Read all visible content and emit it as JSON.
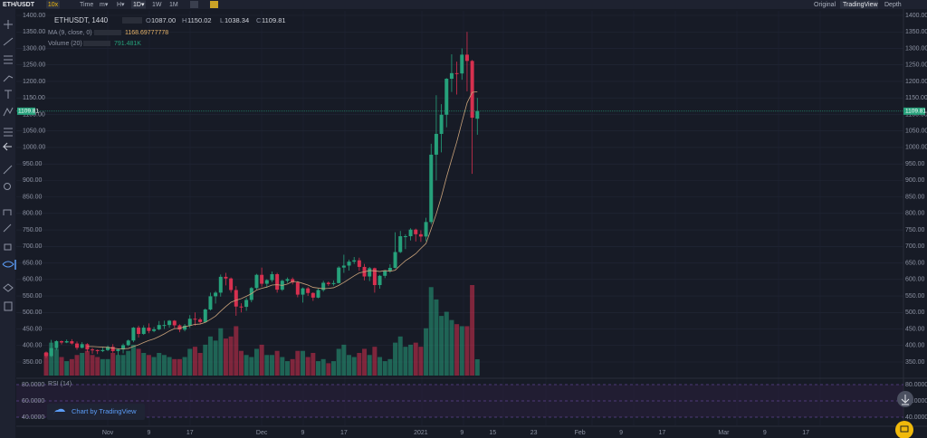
{
  "toolbar": {
    "pair": "ETH/USDT",
    "leverage": "10x",
    "intervals": [
      "Time",
      "m▾",
      "H▾",
      "1D▾",
      "1W",
      "1M"
    ],
    "views": [
      "Original",
      "TradingView",
      "Depth"
    ]
  },
  "legend": {
    "symbol": "ETHUSDT, 1440",
    "open_label": "O",
    "open": "1087.00",
    "high_label": "H",
    "high": "1150.02",
    "low_label": "L",
    "low": "1038.34",
    "close_label": "C",
    "close": "1109.81",
    "ma_name": "MA (9, close, 0)",
    "ma_value": "1168.69777778",
    "volume_name": "Volume (20)",
    "volume_value": "791.481K"
  },
  "chart": {
    "type": "candlestick",
    "yticks": [
      {
        "value": 350,
        "label": "350.00"
      },
      {
        "value": 400,
        "label": "400.00"
      },
      {
        "value": 450,
        "label": "450.00"
      },
      {
        "value": 500,
        "label": "500.00"
      },
      {
        "value": 550,
        "label": "550.00"
      },
      {
        "value": 600,
        "label": "600.00"
      },
      {
        "value": 650,
        "label": "650.00"
      },
      {
        "value": 700,
        "label": "700.00"
      },
      {
        "value": 750,
        "label": "750.00"
      },
      {
        "value": 800,
        "label": "800.00"
      },
      {
        "value": 850,
        "label": "850.00"
      },
      {
        "value": 900,
        "label": "900.00"
      },
      {
        "value": 950,
        "label": "950.00"
      },
      {
        "value": 1000,
        "label": "1000.00"
      },
      {
        "value": 1050,
        "label": "1050.00"
      },
      {
        "value": 1100,
        "label": "1100.00"
      },
      {
        "value": 1150,
        "label": "1150.00"
      },
      {
        "value": 1200,
        "label": "1200.00"
      },
      {
        "value": 1250,
        "label": "1250.00"
      },
      {
        "value": 1300,
        "label": "1300.00"
      },
      {
        "value": 1350,
        "label": "1350.00"
      },
      {
        "value": 1400,
        "label": "1400.00"
      }
    ],
    "last_price": {
      "value": 1109.81,
      "label": "1109.81"
    },
    "date_labels": [
      "Nov",
      "9",
      "17",
      "Dec",
      "9",
      "17",
      "2021",
      "9",
      "15",
      "23",
      "Feb",
      "9",
      "17",
      "Mar",
      "9",
      "17"
    ],
    "candles": [
      [
        379,
        382,
        362,
        368
      ],
      [
        368,
        417,
        365,
        392
      ],
      [
        392,
        416,
        386,
        413
      ],
      [
        413,
        415,
        403,
        409
      ],
      [
        409,
        418,
        407,
        413
      ],
      [
        413,
        419,
        403,
        406
      ],
      [
        406,
        412,
        387,
        393
      ],
      [
        393,
        410,
        391,
        404
      ],
      [
        404,
        407,
        380,
        388
      ],
      [
        388,
        393,
        375,
        386
      ],
      [
        386,
        388,
        374,
        383
      ],
      [
        383,
        394,
        380,
        386
      ],
      [
        386,
        400,
        383,
        396
      ],
      [
        396,
        404,
        378,
        383
      ],
      [
        383,
        390,
        370,
        388
      ],
      [
        388,
        406,
        376,
        401
      ],
      [
        401,
        418,
        398,
        415
      ],
      [
        415,
        456,
        410,
        454
      ],
      [
        454,
        460,
        424,
        435
      ],
      [
        435,
        461,
        432,
        454
      ],
      [
        454,
        467,
        437,
        444
      ],
      [
        444,
        456,
        440,
        449
      ],
      [
        449,
        474,
        446,
        462
      ],
      [
        462,
        475,
        450,
        462
      ],
      [
        462,
        477,
        454,
        475
      ],
      [
        475,
        477,
        453,
        461
      ],
      [
        461,
        464,
        440,
        448
      ],
      [
        448,
        465,
        443,
        460
      ],
      [
        460,
        492,
        453,
        481
      ],
      [
        481,
        500,
        460,
        479
      ],
      [
        479,
        484,
        466,
        471
      ],
      [
        471,
        512,
        469,
        509
      ],
      [
        509,
        560,
        506,
        549
      ],
      [
        549,
        565,
        527,
        560
      ],
      [
        560,
        615,
        548,
        608
      ],
      [
        608,
        620,
        582,
        603
      ],
      [
        603,
        606,
        560,
        568
      ],
      [
        568,
        580,
        490,
        518
      ],
      [
        518,
        528,
        500,
        517
      ],
      [
        517,
        545,
        505,
        538
      ],
      [
        538,
        577,
        531,
        574
      ],
      [
        574,
        617,
        570,
        614
      ],
      [
        614,
        636,
        578,
        587
      ],
      [
        587,
        601,
        575,
        598
      ],
      [
        598,
        624,
        592,
        616
      ],
      [
        616,
        620,
        560,
        569
      ],
      [
        569,
        599,
        565,
        596
      ],
      [
        596,
        606,
        590,
        601
      ],
      [
        601,
        606,
        585,
        591
      ],
      [
        591,
        595,
        546,
        554
      ],
      [
        554,
        576,
        530,
        573
      ],
      [
        573,
        577,
        550,
        559
      ],
      [
        559,
        561,
        535,
        545
      ],
      [
        545,
        572,
        543,
        568
      ],
      [
        568,
        596,
        563,
        590
      ],
      [
        590,
        594,
        580,
        586
      ],
      [
        586,
        597,
        581,
        589
      ],
      [
        589,
        640,
        588,
        636
      ],
      [
        636,
        675,
        620,
        642
      ],
      [
        642,
        660,
        627,
        654
      ],
      [
        654,
        668,
        647,
        658
      ],
      [
        658,
        666,
        626,
        638
      ],
      [
        638,
        647,
        597,
        609
      ],
      [
        609,
        638,
        595,
        634
      ],
      [
        634,
        636,
        560,
        583
      ],
      [
        583,
        614,
        572,
        611
      ],
      [
        611,
        628,
        604,
        626
      ],
      [
        626,
        646,
        620,
        635
      ],
      [
        635,
        743,
        633,
        683
      ],
      [
        683,
        747,
        680,
        731
      ],
      [
        731,
        737,
        692,
        731
      ],
      [
        731,
        755,
        718,
        751
      ],
      [
        751,
        754,
        715,
        737
      ],
      [
        737,
        749,
        714,
        730
      ],
      [
        730,
        787,
        716,
        774
      ],
      [
        774,
        1011,
        768,
        978
      ],
      [
        978,
        1158,
        900,
        1041
      ],
      [
        1041,
        1131,
        985,
        1099
      ],
      [
        1099,
        1210,
        1061,
        1208
      ],
      [
        1208,
        1282,
        1168,
        1225
      ],
      [
        1225,
        1260,
        1160,
        1224
      ],
      [
        1224,
        1300,
        1205,
        1281
      ],
      [
        1281,
        1350,
        1170,
        1262
      ],
      [
        1262,
        1265,
        920,
        1090
      ],
      [
        1087,
        1150.02,
        1038.34,
        1109.81
      ]
    ],
    "volumes": [
      1100,
      1600,
      1300,
      900,
      700,
      800,
      1000,
      1100,
      1200,
      1000,
      900,
      800,
      800,
      1100,
      1000,
      1000,
      1200,
      1500,
      1300,
      1100,
      1000,
      900,
      1100,
      1000,
      900,
      800,
      800,
      900,
      1300,
      1400,
      1100,
      1500,
      1900,
      1700,
      2300,
      1800,
      1900,
      2400,
      1200,
      1000,
      900,
      1300,
      1500,
      1000,
      1000,
      1200,
      900,
      700,
      800,
      1200,
      1200,
      900,
      1100,
      700,
      800,
      600,
      700,
      1300,
      1500,
      1000,
      900,
      1100,
      1300,
      1000,
      1400,
      900,
      700,
      800,
      1600,
      1900,
      1400,
      1500,
      1600,
      1400,
      2300,
      4300,
      3700,
      2900,
      3100,
      2700,
      2500,
      2400,
      2400,
      4400,
      791.481
    ],
    "ma": [
      null,
      null,
      null,
      null,
      null,
      null,
      null,
      null,
      397,
      397,
      396,
      395,
      394,
      392,
      390,
      390,
      391,
      397,
      402,
      409,
      415,
      420,
      427,
      435,
      444,
      451,
      452,
      457,
      460,
      464,
      465,
      470,
      479,
      489,
      504,
      518,
      531,
      537,
      542,
      549,
      557,
      568,
      573,
      577,
      583,
      584,
      582,
      586,
      594,
      593,
      588,
      583,
      576,
      574,
      572,
      573,
      575,
      582,
      591,
      601,
      611,
      620,
      623,
      627,
      626,
      624,
      627,
      625,
      628,
      643,
      657,
      667,
      678,
      694,
      709,
      753,
      799,
      851,
      910,
      964,
      1017,
      1077,
      1135,
      1167,
      1168.69777778
    ],
    "ma_color": "#c9a27a",
    "up_color": "#26a17b",
    "down_color": "#d6304f"
  },
  "rsi": {
    "name": "RSI (14)",
    "yticks": [
      {
        "value": 80,
        "label": "80.0000"
      },
      {
        "value": 60,
        "label": "60.0000"
      },
      {
        "value": 40,
        "label": "40.0000"
      }
    ]
  },
  "watermark": "Chart by TradingView"
}
